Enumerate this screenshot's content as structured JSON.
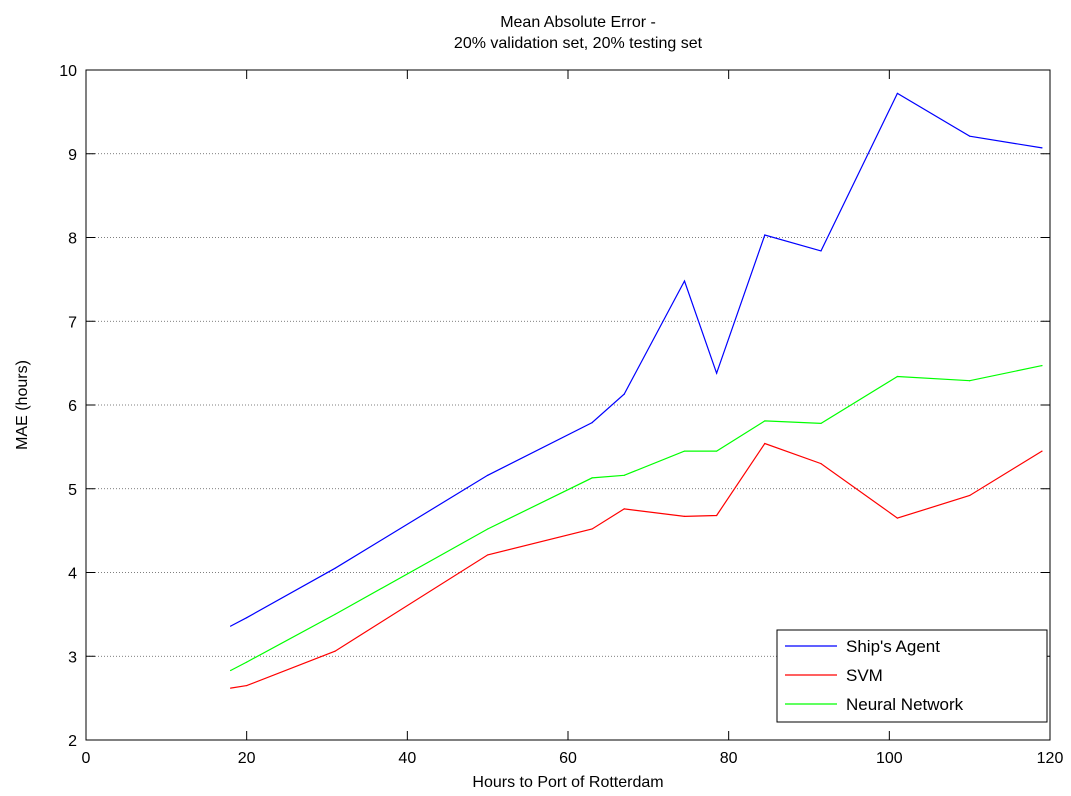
{
  "chart_data": {
    "type": "line",
    "title": [
      "Mean Absolute Error -",
      "20% validation set, 20% testing set"
    ],
    "xlabel": "Hours to Port of Rotterdam",
    "ylabel": "MAE (hours)",
    "xlim": [
      0,
      120
    ],
    "ylim": [
      2,
      10
    ],
    "xticks": [
      0,
      20,
      40,
      60,
      80,
      100,
      120
    ],
    "yticks": [
      2,
      3,
      4,
      5,
      6,
      7,
      8,
      9,
      10
    ],
    "grid": "horizontal-dotted",
    "legend_position": "bottom-right",
    "series": [
      {
        "name": "Ship's Agent",
        "color": "#0000ff",
        "x": [
          18,
          20,
          31,
          50,
          63,
          67,
          74.5,
          78.5,
          84.5,
          91.5,
          101,
          110,
          119
        ],
        "y": [
          3.36,
          3.46,
          4.05,
          5.16,
          5.79,
          6.13,
          7.48,
          6.38,
          8.03,
          7.84,
          9.72,
          9.21,
          9.07
        ]
      },
      {
        "name": "SVM",
        "color": "#ff0000",
        "x": [
          18,
          20,
          31,
          50,
          63,
          67,
          74.5,
          78.5,
          84.5,
          91.5,
          101,
          110,
          119
        ],
        "y": [
          2.62,
          2.65,
          3.06,
          4.21,
          4.52,
          4.76,
          4.67,
          4.68,
          5.54,
          5.3,
          4.65,
          4.92,
          5.45
        ]
      },
      {
        "name": "Neural Network",
        "color": "#00ff00",
        "x": [
          18,
          20,
          31,
          50,
          63,
          67,
          74.5,
          78.5,
          84.5,
          91.5,
          101,
          110,
          119
        ],
        "y": [
          2.83,
          2.93,
          3.5,
          4.52,
          5.13,
          5.16,
          5.45,
          5.45,
          5.81,
          5.78,
          6.34,
          6.29,
          6.47
        ]
      }
    ]
  }
}
